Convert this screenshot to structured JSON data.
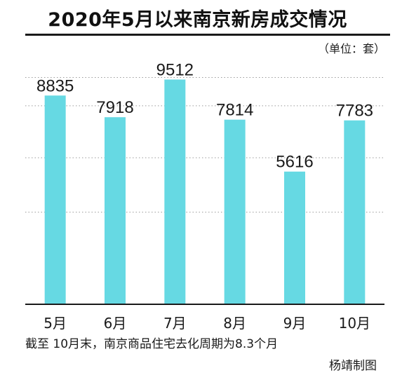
{
  "title": "2020年5月以来南京新房成交情况",
  "unit_label": "（单位：套）",
  "footnote": "截至 10月末，南京商品住宅去化周期为8.3个月",
  "credit": "杨靖制图",
  "colors": {
    "bar": "#66d9e3",
    "gridline": "#9a9a9a",
    "axis": "#1a1a1a",
    "text": "#1a1a1a"
  },
  "chart_data": {
    "type": "bar",
    "title": "2020年5月以来南京新房成交情况",
    "categories": [
      "5月",
      "6月",
      "7月",
      "8月",
      "9月",
      "10月"
    ],
    "values": [
      8835,
      7918,
      9512,
      7814,
      5616,
      7783
    ],
    "ylim": [
      0,
      10000
    ],
    "grid": "dotted horizontal",
    "legend": "none"
  }
}
